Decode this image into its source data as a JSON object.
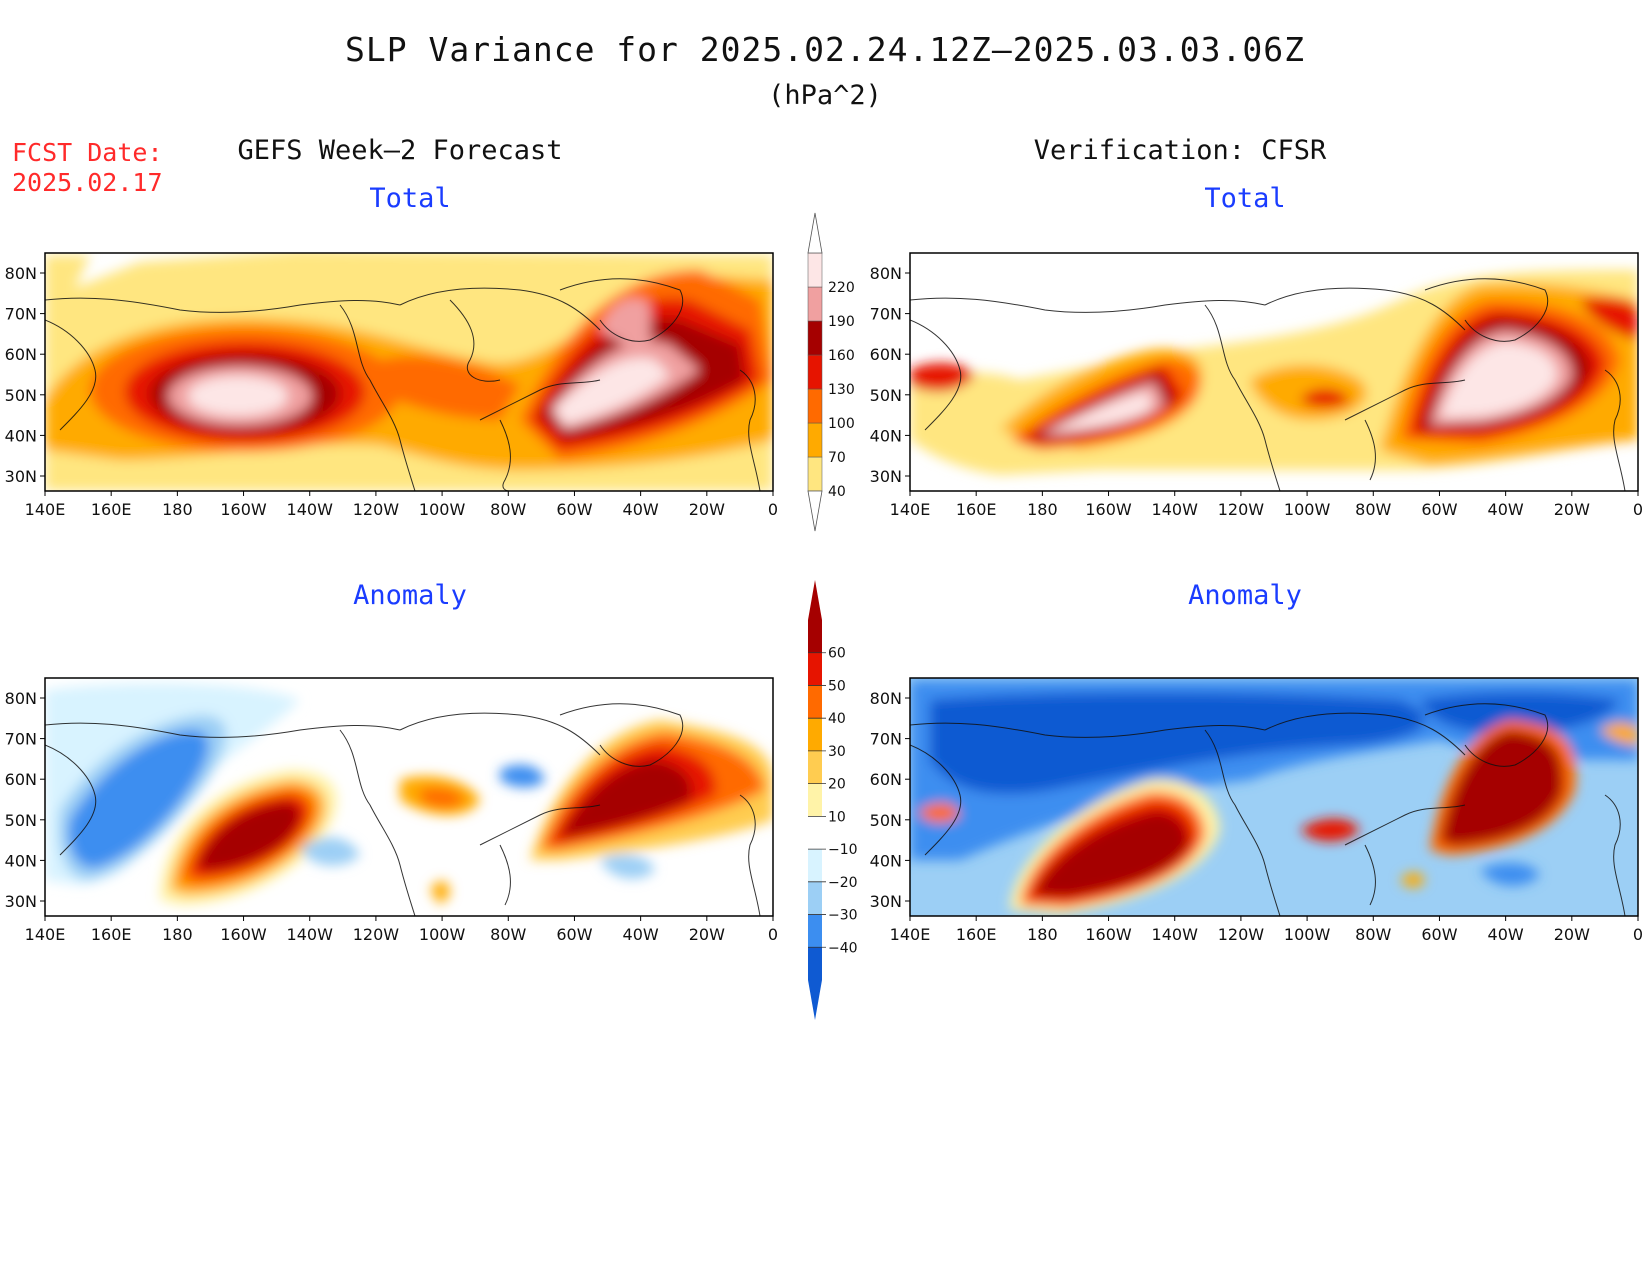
{
  "title": "SLP Variance for 2025.02.24.12Z–2025.03.03.06Z",
  "units": "(hPa^2)",
  "fcst_label": "FCST Date:",
  "fcst_date": "2025.02.17",
  "left_header": "GEFS Week–2 Forecast",
  "right_header": "Verification: CFSR",
  "panels": {
    "top_left": "Total",
    "top_right": "Total",
    "bottom_left": "Anomaly",
    "bottom_right": "Anomaly"
  },
  "lat_labels": [
    "80N",
    "70N",
    "60N",
    "50N",
    "40N",
    "30N"
  ],
  "lon_labels": [
    "140E",
    "160E",
    "180",
    "160W",
    "140W",
    "120W",
    "100W",
    "80W",
    "60W",
    "40W",
    "20W",
    "0"
  ],
  "total_colorbar": {
    "levels": [
      "40",
      "70",
      "100",
      "130",
      "160",
      "190",
      "220"
    ],
    "colors": [
      "#ffe680",
      "#ffaa00",
      "#ff6a00",
      "#e61400",
      "#a50000",
      "#f0a0a0",
      "#fde6e6"
    ]
  },
  "anomaly_colorbar": {
    "levels": [
      "60",
      "50",
      "40",
      "30",
      "20",
      "10",
      "−10",
      "−20",
      "−30",
      "−40"
    ],
    "colors": [
      "#a50000",
      "#e61400",
      "#ff6a00",
      "#ffaa00",
      "#ffcc50",
      "#fff3a8",
      "#ffffff",
      "#d8f3ff",
      "#9ccff5",
      "#3c8ef0",
      "#0f5ad2"
    ]
  }
}
